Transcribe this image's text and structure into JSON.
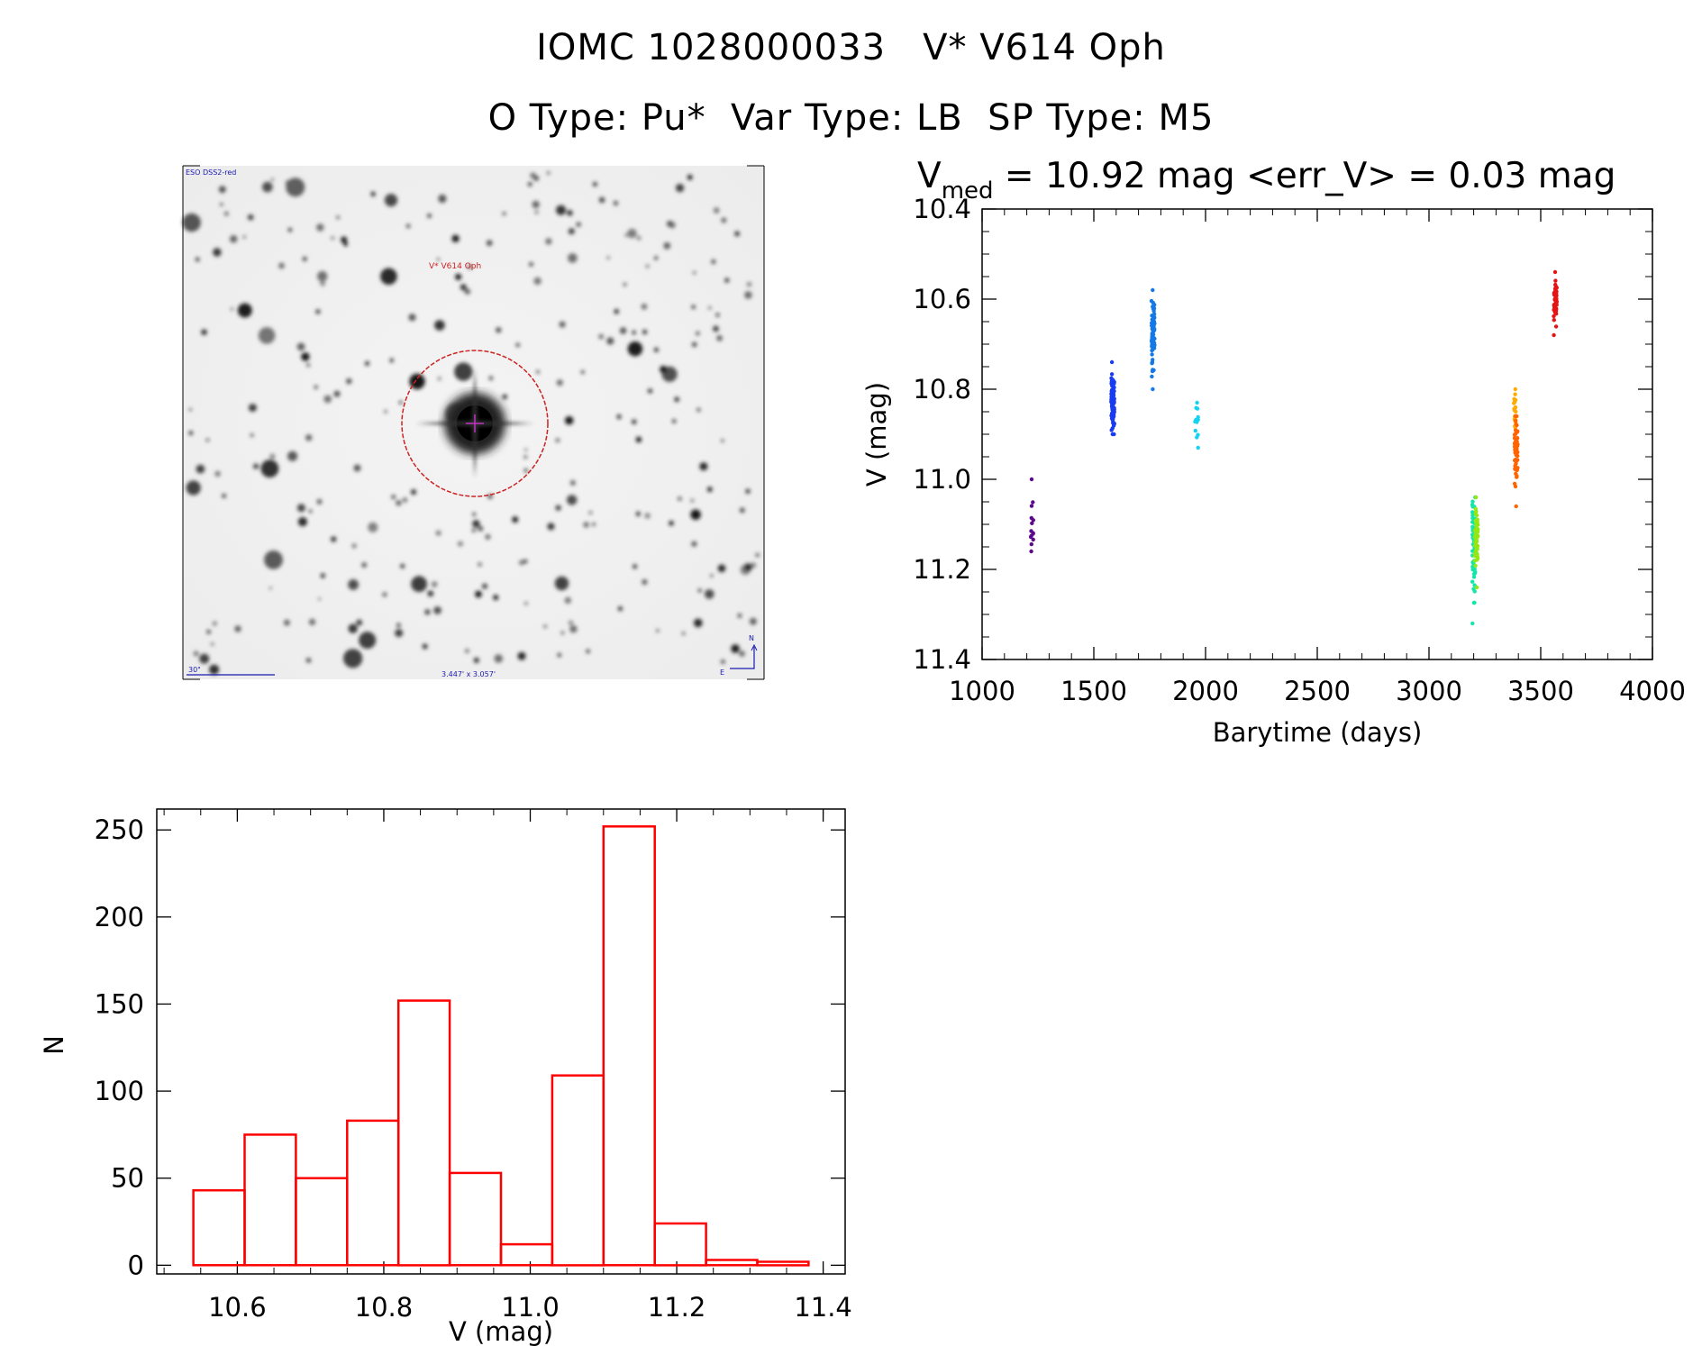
{
  "header": {
    "line1": "IOMC 1028000033   V* V614 Oph",
    "line2": "O Type: Pu*  Var Type: LB  SP Type: M5"
  },
  "finder": {
    "survey_label": "ESO DSS2-red",
    "target_label": "V* V614 Oph",
    "scale_label": "30\"",
    "fov_label": "3.447' x 3.057'",
    "north_label": "N",
    "east_label": "E"
  },
  "colors": {
    "hist": "#ff0000",
    "circle": "#cc2222",
    "compass": "#1a1ab0"
  },
  "chart_data": [
    {
      "type": "scatter",
      "title_prefix": "V",
      "title_sub": "med",
      "title_rest": " = 10.92 mag <err_V> = 0.03 mag",
      "xlabel": "Barytime (days)",
      "ylabel": "V (mag)",
      "xlim": [
        1000,
        4000
      ],
      "ylim": [
        10.4,
        11.4
      ],
      "y_inverted": true,
      "x_ticks": [
        1000,
        1500,
        2000,
        2500,
        3000,
        3500,
        4000
      ],
      "x_tick_labels": [
        "1000",
        "1500",
        "2000",
        "2500",
        "3000",
        "3500",
        "4000"
      ],
      "y_ticks": [
        10.4,
        10.6,
        10.8,
        11.0,
        11.2,
        11.4
      ],
      "y_tick_labels": [
        "10.4",
        "10.6",
        "10.8",
        "11.0",
        "11.2",
        "11.4"
      ],
      "clusters": [
        {
          "x": 1225,
          "ymin": 11.0,
          "ymax": 11.16,
          "center": 11.1,
          "n": 14,
          "color": "#5a0a8a"
        },
        {
          "x": 1585,
          "ymin": 10.74,
          "ymax": 10.9,
          "center": 10.83,
          "n": 90,
          "color": "#1a3cf0"
        },
        {
          "x": 1765,
          "ymin": 10.58,
          "ymax": 10.8,
          "center": 10.68,
          "n": 80,
          "color": "#1478e6"
        },
        {
          "x": 1960,
          "ymin": 10.83,
          "ymax": 10.93,
          "center": 10.87,
          "n": 12,
          "color": "#14d2f0"
        },
        {
          "x": 3200,
          "ymin": 11.04,
          "ymax": 11.32,
          "center": 11.15,
          "n": 60,
          "color": "#14e6aa"
        },
        {
          "x": 3212,
          "ymin": 11.04,
          "ymax": 11.24,
          "center": 11.13,
          "n": 60,
          "color": "#96e614"
        },
        {
          "x": 3385,
          "ymin": 10.8,
          "ymax": 10.92,
          "center": 10.86,
          "n": 25,
          "color": "#ffaa00"
        },
        {
          "x": 3390,
          "ymin": 10.86,
          "ymax": 11.06,
          "center": 10.94,
          "n": 50,
          "color": "#ff6400"
        },
        {
          "x": 3565,
          "ymin": 10.54,
          "ymax": 10.68,
          "center": 10.61,
          "n": 50,
          "color": "#e61414"
        }
      ]
    },
    {
      "type": "bar",
      "style": "histogram-outline",
      "xlabel": "V (mag)",
      "ylabel": "N",
      "xlim": [
        10.49,
        11.43
      ],
      "ylim": [
        -5,
        262
      ],
      "x_ticks": [
        10.6,
        10.8,
        11.0,
        11.2,
        11.4
      ],
      "x_tick_labels": [
        "10.6",
        "10.8",
        "11.0",
        "11.2",
        "11.4"
      ],
      "y_ticks": [
        0,
        50,
        100,
        150,
        200,
        250
      ],
      "y_tick_labels": [
        "0",
        "50",
        "100",
        "150",
        "200",
        "250"
      ],
      "bin_edges": [
        10.54,
        10.61,
        10.68,
        10.75,
        10.82,
        10.89,
        10.96,
        11.03,
        11.1,
        11.17,
        11.24,
        11.31,
        11.38
      ],
      "counts": [
        43,
        75,
        50,
        83,
        152,
        53,
        12,
        109,
        252,
        24,
        3,
        2
      ]
    }
  ]
}
